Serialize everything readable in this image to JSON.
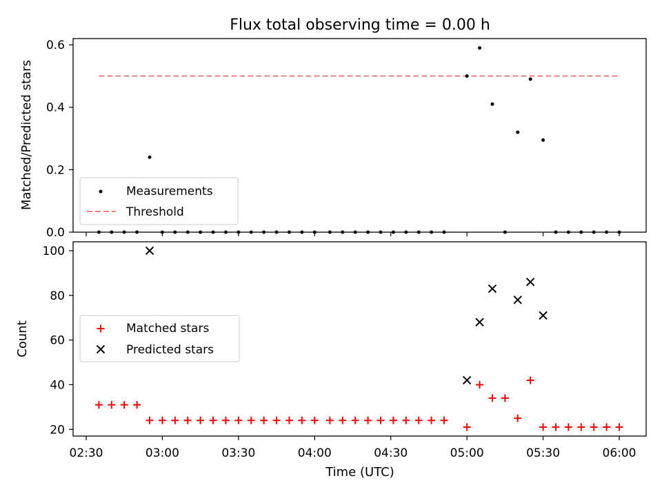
{
  "chart_data": [
    {
      "type": "scatter",
      "title": "Flux total observing time = 0.00 h",
      "xlabel": "",
      "ylabel": "Matched/Predicted stars",
      "xlim": [
        "02:30",
        "06:00"
      ],
      "ylim": [
        0,
        0.62
      ],
      "yticks": [
        0.0,
        0.2,
        0.4,
        0.6
      ],
      "ytick_labels": [
        "0.0",
        "0.2",
        "0.4",
        "0.6"
      ],
      "grid": false,
      "legend_position": "lower-left",
      "x_times": [
        "02:35",
        "02:40",
        "02:45",
        "02:50",
        "02:55",
        "03:00",
        "03:05",
        "03:10",
        "03:15",
        "03:20",
        "03:25",
        "03:30",
        "03:35",
        "03:40",
        "03:45",
        "03:50",
        "03:55",
        "04:00",
        "04:06",
        "04:11",
        "04:16",
        "04:21",
        "04:26",
        "04:31",
        "04:36",
        "04:41",
        "04:46",
        "04:51",
        "05:00",
        "05:05",
        "05:10",
        "05:15",
        "05:20",
        "05:25",
        "05:30",
        "05:35",
        "05:40",
        "05:45",
        "05:50",
        "05:55",
        "06:00"
      ],
      "series": [
        {
          "name": "Measurements",
          "color": "#000000",
          "marker": "dot",
          "y": [
            0,
            0,
            0,
            0,
            0.24,
            0,
            0,
            0,
            0,
            0,
            0,
            0,
            0,
            0,
            0,
            0,
            0,
            0,
            0,
            0,
            0,
            0,
            0,
            0,
            0,
            0,
            0,
            0,
            0.5,
            0.59,
            0.41,
            0,
            0.32,
            0.49,
            0.295,
            0,
            0,
            0,
            0,
            0,
            0
          ]
        },
        {
          "name": "Threshold",
          "color": "#f08080",
          "style": "dashed",
          "x": [
            "02:35",
            "06:00"
          ],
          "y": [
            0.5,
            0.5
          ]
        }
      ]
    },
    {
      "type": "scatter",
      "title": "",
      "xlabel": "Time (UTC)",
      "ylabel": "Count",
      "xlim": [
        "02:30",
        "06:00"
      ],
      "ylim": [
        17,
        104
      ],
      "yticks": [
        20,
        40,
        60,
        80,
        100
      ],
      "ytick_labels": [
        "20",
        "40",
        "60",
        "80",
        "100"
      ],
      "xticks": [
        "02:30",
        "03:00",
        "03:30",
        "04:00",
        "04:30",
        "05:00",
        "05:30",
        "06:00"
      ],
      "grid": false,
      "legend_position": "center-left",
      "series": [
        {
          "name": "Matched stars",
          "color": "#ff0000",
          "marker": "plus",
          "x": [
            "02:35",
            "02:40",
            "02:45",
            "02:50",
            "02:55",
            "03:00",
            "03:05",
            "03:10",
            "03:15",
            "03:20",
            "03:25",
            "03:30",
            "03:35",
            "03:40",
            "03:45",
            "03:50",
            "03:55",
            "04:00",
            "04:06",
            "04:11",
            "04:16",
            "04:21",
            "04:26",
            "04:31",
            "04:36",
            "04:41",
            "04:46",
            "04:51",
            "05:00",
            "05:05",
            "05:10",
            "05:15",
            "05:20",
            "05:25",
            "05:30",
            "05:35",
            "05:40",
            "05:45",
            "05:50",
            "05:55",
            "06:00"
          ],
          "y": [
            31,
            31,
            31,
            31,
            24,
            24,
            24,
            24,
            24,
            24,
            24,
            24,
            24,
            24,
            24,
            24,
            24,
            24,
            24,
            24,
            24,
            24,
            24,
            24,
            24,
            24,
            24,
            24,
            21,
            40,
            34,
            34,
            25,
            42,
            21,
            21,
            21,
            21,
            21,
            21,
            21
          ]
        },
        {
          "name": "Predicted stars",
          "color": "#000000",
          "marker": "x",
          "x": [
            "02:55",
            "05:00",
            "05:05",
            "05:10",
            "05:20",
            "05:25",
            "05:30"
          ],
          "y": [
            100,
            42,
            68,
            83,
            78,
            86,
            71
          ]
        }
      ]
    }
  ]
}
